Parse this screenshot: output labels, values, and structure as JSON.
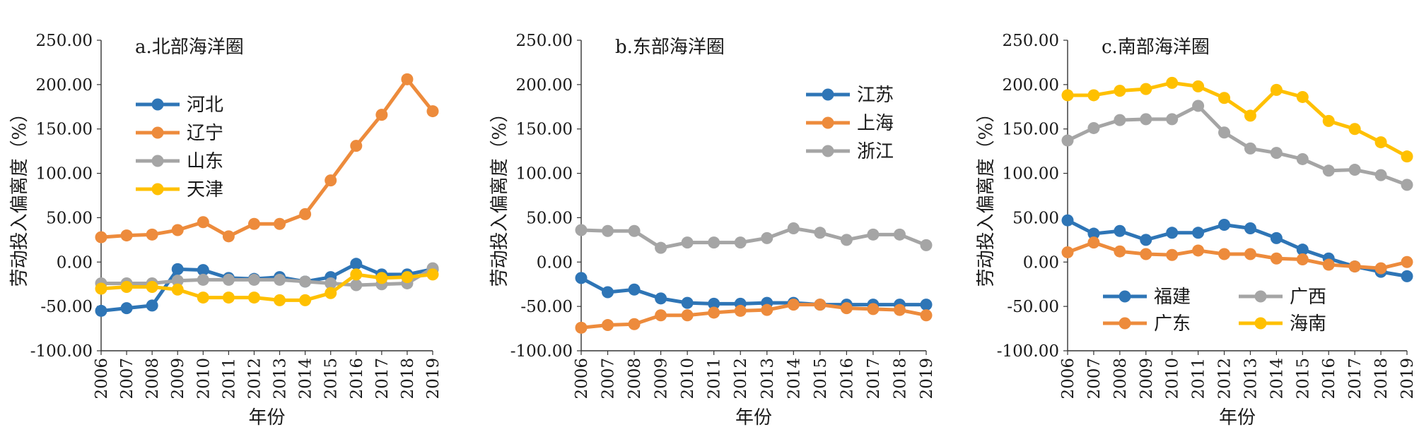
{
  "chart_data": [
    {
      "type": "line",
      "title": "a.北部海洋圈",
      "xlabel": "年份",
      "ylabel": "劳动投入偏离度（%）",
      "x": [
        "2006",
        "2007",
        "2008",
        "2009",
        "2010",
        "2011",
        "2012",
        "2013",
        "2014",
        "2015",
        "2016",
        "2017",
        "2018",
        "2019"
      ],
      "ylim": [
        -100,
        250
      ],
      "yticks": [
        "-100.00",
        "-50.00",
        "0.00",
        "50.00",
        "100.00",
        "150.00",
        "200.00",
        "250.00"
      ],
      "grid": false,
      "legend_position": "upper-left",
      "series": [
        {
          "name": "河北",
          "color": "#2e75b6",
          "values": [
            -55,
            -52,
            -49,
            -8,
            -9,
            -18,
            -19,
            -17,
            -22,
            -17,
            -2,
            -14,
            -14,
            -8
          ]
        },
        {
          "name": "辽宁",
          "color": "#ed8b3c",
          "values": [
            28,
            30,
            31,
            36,
            45,
            29,
            43,
            43,
            54,
            92,
            131,
            166,
            206,
            170
          ]
        },
        {
          "name": "山东",
          "color": "#a5a5a5",
          "values": [
            -24,
            -24,
            -24,
            -21,
            -20,
            -20,
            -20,
            -20,
            -22,
            -24,
            -26,
            -25,
            -24,
            -7
          ]
        },
        {
          "name": "天津",
          "color": "#ffc000",
          "values": [
            -30,
            -28,
            -28,
            -31,
            -40,
            -40,
            -40,
            -43,
            -43,
            -35,
            -14,
            -18,
            -17,
            -14
          ]
        }
      ]
    },
    {
      "type": "line",
      "title": "b.东部海洋圈",
      "xlabel": "年份",
      "ylabel": "劳动投入偏离度（%）",
      "x": [
        "2006",
        "2007",
        "2008",
        "2009",
        "2010",
        "2011",
        "2012",
        "2013",
        "2014",
        "2015",
        "2016",
        "2017",
        "2018",
        "2019"
      ],
      "ylim": [
        -100,
        250
      ],
      "yticks": [
        "-100.00",
        "-50.00",
        "0.00",
        "50.00",
        "100.00",
        "150.00",
        "200.00",
        "250.00"
      ],
      "grid": false,
      "legend_position": "upper-right",
      "series": [
        {
          "name": "江苏",
          "color": "#2e75b6",
          "values": [
            -18,
            -34,
            -31,
            -41,
            -46,
            -47,
            -47,
            -46,
            -46,
            -48,
            -48,
            -48,
            -48,
            -48
          ]
        },
        {
          "name": "上海",
          "color": "#ed8b3c",
          "values": [
            -74,
            -71,
            -70,
            -60,
            -60,
            -57,
            -55,
            -54,
            -48,
            -48,
            -52,
            -53,
            -54,
            -60
          ]
        },
        {
          "name": "浙江",
          "color": "#a5a5a5",
          "values": [
            36,
            35,
            35,
            16,
            22,
            22,
            22,
            27,
            38,
            33,
            25,
            31,
            31,
            19
          ]
        }
      ]
    },
    {
      "type": "line",
      "title": "c.南部海洋圈",
      "xlabel": "年份",
      "ylabel": "劳动投入偏离度（%）",
      "x": [
        "2006",
        "2007",
        "2008",
        "2009",
        "2010",
        "2011",
        "2012",
        "2013",
        "2014",
        "2015",
        "2016",
        "2017",
        "2018",
        "2019"
      ],
      "ylim": [
        -100,
        250
      ],
      "yticks": [
        "-100.00",
        "-50.00",
        "0.00",
        "50.00",
        "100.00",
        "150.00",
        "200.00",
        "250.00"
      ],
      "grid": false,
      "legend_position": "lower-left",
      "series": [
        {
          "name": "福建",
          "color": "#2e75b6",
          "values": [
            47,
            32,
            35,
            25,
            33,
            33,
            42,
            38,
            27,
            14,
            4,
            -5,
            -11,
            -16
          ]
        },
        {
          "name": "广东",
          "color": "#ed8b3c",
          "values": [
            11,
            22,
            12,
            9,
            8,
            13,
            9,
            9,
            4,
            3,
            -3,
            -5,
            -7,
            0
          ]
        },
        {
          "name": "广西",
          "color": "#a5a5a5",
          "values": [
            137,
            151,
            160,
            161,
            161,
            176,
            146,
            128,
            123,
            116,
            103,
            104,
            98,
            87
          ]
        },
        {
          "name": "海南",
          "color": "#ffc000",
          "values": [
            188,
            188,
            193,
            195,
            202,
            198,
            185,
            165,
            194,
            186,
            159,
            150,
            135,
            119
          ]
        }
      ]
    }
  ]
}
